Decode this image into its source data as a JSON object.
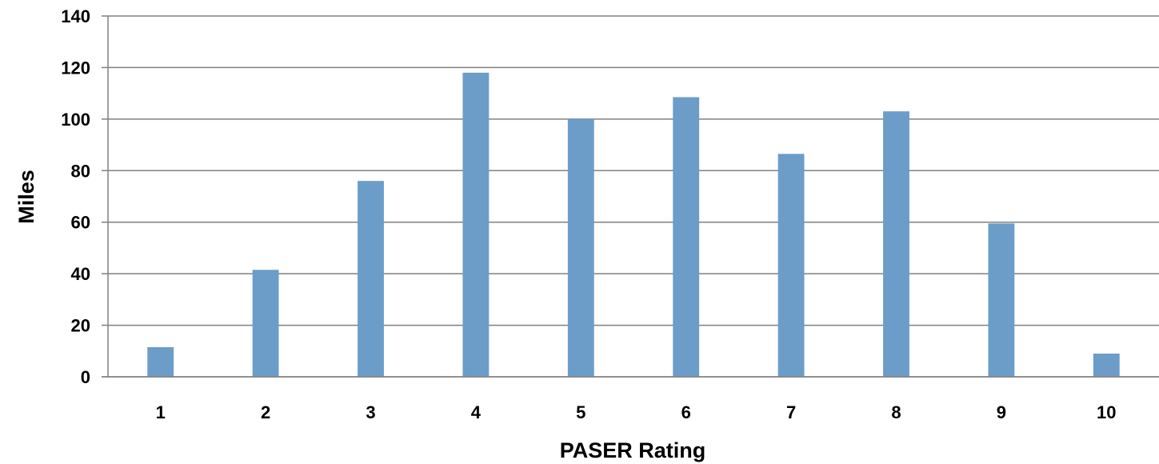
{
  "chart_data": {
    "type": "bar",
    "title": "",
    "xlabel": "PASER Rating",
    "ylabel": "Miles",
    "categories": [
      "1",
      "2",
      "3",
      "4",
      "5",
      "6",
      "7",
      "8",
      "9",
      "10"
    ],
    "values": [
      11.5,
      41.5,
      76,
      118,
      100,
      108.5,
      86.5,
      103,
      59.5,
      9
    ],
    "ylim": [
      0,
      140
    ],
    "yticks": [
      0,
      20,
      40,
      60,
      80,
      100,
      120,
      140
    ],
    "grid": true,
    "legend": "none",
    "bar_color": "#6B9DC8",
    "grid_color": "#808080"
  }
}
